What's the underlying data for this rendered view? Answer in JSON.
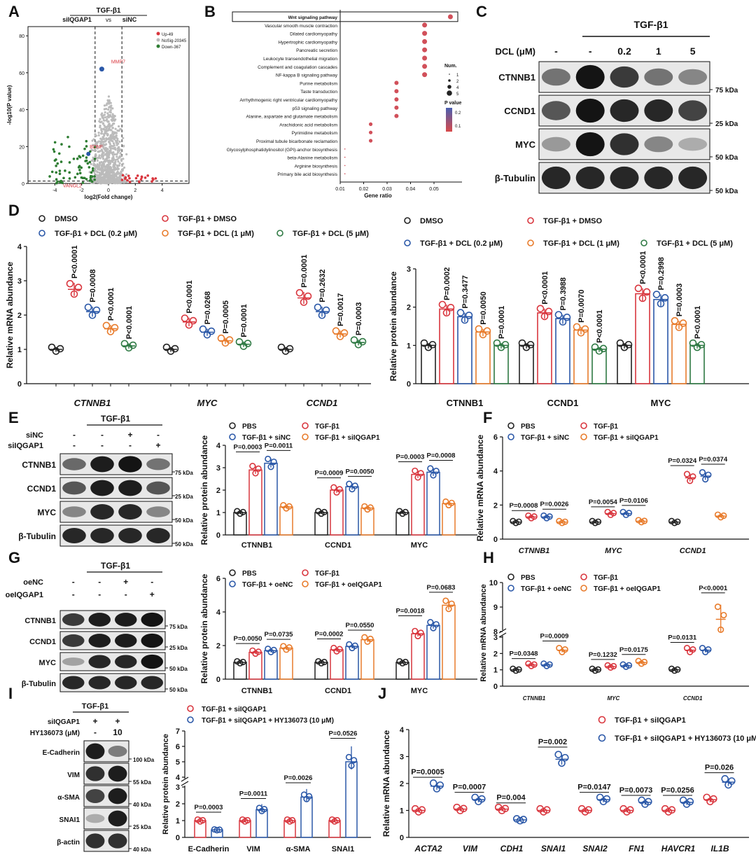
{
  "panels": [
    "A",
    "B",
    "C",
    "D",
    "E",
    "F",
    "G",
    "H",
    "I",
    "J"
  ],
  "colors": {
    "dmso": "#222222",
    "tgf": "#d9363e",
    "low": "#2b58a8",
    "mid": "#e87b2b",
    "high": "#2f7a44",
    "grey": "#bbbbbb",
    "green": "#2e7d32"
  },
  "chart_data": [
    {
      "id": "A",
      "type": "scatter",
      "title": "TGF-β1",
      "subtitle_left": "siIQGAP1",
      "subtitle_vs": "vs",
      "subtitle_right": "siNC",
      "xlabel": "log2(Fold change)",
      "ylabel": "-log10(P value)",
      "x_ticks": [
        "-4",
        "-2",
        "0",
        "2",
        "4"
      ],
      "y_ticks": [
        "0",
        "20",
        "40",
        "60",
        "80"
      ],
      "legend": [
        "Up-49",
        "NoSig-20345",
        "Down-367"
      ],
      "annotations": [
        "MMP7",
        "BDNF",
        "VANGL2"
      ],
      "xlim": [
        -6,
        6
      ],
      "ylim": [
        0,
        85
      ]
    },
    {
      "id": "B",
      "type": "scatter",
      "xlabel": "Gene ratio",
      "x_ticks": [
        "0.01",
        "0.02",
        "0.03",
        "0.04",
        "0.05"
      ],
      "pathways": [
        {
          "name": "Wnt signaling pathway",
          "ratio": 0.057,
          "p": 0.05
        },
        {
          "name": "Vascular smooth muscle contraction",
          "ratio": 0.046,
          "p": 0.08
        },
        {
          "name": "Dilated cardiomyopathy",
          "ratio": 0.046,
          "p": 0.08
        },
        {
          "name": "Hypertrophic cardiomyopathy",
          "ratio": 0.046,
          "p": 0.08
        },
        {
          "name": "Pancreatic secretion",
          "ratio": 0.046,
          "p": 0.08
        },
        {
          "name": "Leukocyte transendothelial migration",
          "ratio": 0.046,
          "p": 0.08
        },
        {
          "name": "Complement and coagulation cascades",
          "ratio": 0.046,
          "p": 0.08
        },
        {
          "name": "NF-kappa B signaling pathway",
          "ratio": 0.046,
          "p": 0.08
        },
        {
          "name": "Purine metabolism",
          "ratio": 0.034,
          "p": 0.1
        },
        {
          "name": "Taste transduction",
          "ratio": 0.034,
          "p": 0.1
        },
        {
          "name": "Arrhythmogenic right ventricular cardiomyopathy",
          "ratio": 0.034,
          "p": 0.1
        },
        {
          "name": "p53 signaling pathway",
          "ratio": 0.034,
          "p": 0.1
        },
        {
          "name": "Alanine, aspartate and glutamate metabolism",
          "ratio": 0.034,
          "p": 0.1
        },
        {
          "name": "Arachidonic acid metabolism",
          "ratio": 0.023,
          "p": 0.12
        },
        {
          "name": "Pyrimidine metabolism",
          "ratio": 0.023,
          "p": 0.12
        },
        {
          "name": "Proximal tubule bicarbonate reclamation",
          "ratio": 0.023,
          "p": 0.12
        },
        {
          "name": "Glycosylphosphatidylinositol (GPI)-anchor biosynthesis",
          "ratio": 0.012,
          "p": 0.15
        },
        {
          "name": "beta-Alanine metabolism",
          "ratio": 0.012,
          "p": 0.15
        },
        {
          "name": "Arginine biosynthesis",
          "ratio": 0.012,
          "p": 0.15
        },
        {
          "name": "Primary bile acid biosynthesis",
          "ratio": 0.012,
          "p": 0.15
        }
      ],
      "legend_size_title": "Num.",
      "legend_sizes": [
        "1",
        "2",
        "4",
        "5"
      ],
      "legend_color_title": "P value",
      "legend_color_ticks": [
        "0.2",
        "0.1"
      ]
    },
    {
      "id": "C",
      "type": "blot",
      "treatment": "TGF-β1",
      "dose_label": "DCL (μM)",
      "lanes": [
        "-",
        "-",
        "0.2",
        "1",
        "5"
      ],
      "bands": [
        {
          "name": "CTNNB1",
          "kda": "75 kDa",
          "intensity": [
            0.45,
            0.95,
            0.75,
            0.45,
            0.35
          ]
        },
        {
          "name": "CCND1",
          "kda": "25 kDa",
          "intensity": [
            0.6,
            0.95,
            0.85,
            0.85,
            0.7
          ]
        },
        {
          "name": "MYC",
          "kda": "50 kDa",
          "intensity": [
            0.25,
            0.95,
            0.8,
            0.35,
            0.15
          ]
        },
        {
          "name": "β-Tubulin",
          "kda": "50 kDa",
          "intensity": [
            0.85,
            0.85,
            0.85,
            0.85,
            0.85
          ]
        }
      ]
    },
    {
      "id": "D1",
      "type": "scatter",
      "ylabel": "Relative mRNA abundance",
      "ylim": [
        0,
        4
      ],
      "y_ticks": [
        "0",
        "1",
        "2",
        "3",
        "4"
      ],
      "legend": [
        "DMSO",
        "TGF-β1 + DMSO",
        "TGF-β1 + DCL (0.2 μM)",
        "TGF-β1 + DCL (1 μM)",
        "TGF-β1 + DCL (5 μM)"
      ],
      "categories": [
        "CTNNB1",
        "MYC",
        "CCND1"
      ],
      "means": [
        [
          1,
          2.75,
          2.1,
          1.6,
          1.1
        ],
        [
          1,
          1.8,
          1.5,
          1.25,
          1.15
        ],
        [
          1,
          2.5,
          2.1,
          1.45,
          1.2
        ]
      ],
      "pvals": [
        [
          "",
          "P<0.0001",
          "P=0.0008",
          "P<0.0001",
          "P<0.0001"
        ],
        [
          "",
          "P<0.0001",
          "P=0.0268",
          "P=0.0005",
          "P=0.0001"
        ],
        [
          "",
          "P=0.0001",
          "P=0.2632",
          "P=0.0017",
          "P=0.0003"
        ]
      ]
    },
    {
      "id": "D2",
      "type": "bar",
      "ylabel": "Relative protein abundance",
      "ylim": [
        0,
        3
      ],
      "y_ticks": [
        "0",
        "1",
        "2",
        "3"
      ],
      "legend": [
        "DMSO",
        "TGF-β1 + DMSO",
        "TGF-β1 + DCL (0.2 μM)",
        "TGF-β1 + DCL (1 μM)",
        "TGF-β1 + DCL (5 μM)"
      ],
      "categories": [
        "CTNNB1",
        "CCND1",
        "MYC"
      ],
      "means": [
        [
          1,
          1.95,
          1.75,
          1.35,
          1.0
        ],
        [
          1,
          1.85,
          1.7,
          1.4,
          0.9
        ],
        [
          1,
          2.35,
          2.2,
          1.55,
          1.0
        ]
      ],
      "pvals": [
        [
          "",
          "P=0.0002",
          "P=0.3477",
          "P=0.0050",
          "P=0.0001"
        ],
        [
          "",
          "P<0.0001",
          "P=0.3988",
          "P=0.0070",
          "P<0.0001"
        ],
        [
          "",
          "P<0.0001",
          "P=0.2998",
          "P=0.0003",
          "P<0.0001"
        ]
      ]
    },
    {
      "id": "E_blot",
      "type": "blot",
      "treatment": "TGF-β1",
      "rows": [
        {
          "label": "siNC",
          "vals": [
            "-",
            "-",
            "+",
            "-"
          ]
        },
        {
          "label": "siIQGAP1",
          "vals": [
            "-",
            "-",
            "-",
            "+"
          ]
        }
      ],
      "bands": [
        {
          "name": "CTNNB1",
          "kda": "75 kDa",
          "intensity": [
            0.5,
            0.9,
            0.95,
            0.45
          ]
        },
        {
          "name": "CCND1",
          "kda": "25 kDa",
          "intensity": [
            0.6,
            0.9,
            0.9,
            0.6
          ]
        },
        {
          "name": "MYC",
          "kda": "50 kDa",
          "intensity": [
            0.35,
            0.85,
            0.85,
            0.35
          ]
        },
        {
          "name": "β-Tubulin",
          "kda": "50 kDa",
          "intensity": [
            0.85,
            0.85,
            0.85,
            0.85
          ]
        }
      ]
    },
    {
      "id": "E_bar",
      "type": "bar",
      "ylabel": "Relative protein abundance",
      "ylim": [
        0,
        4
      ],
      "y_ticks": [
        "0",
        "1",
        "2",
        "3",
        "4"
      ],
      "legend": [
        "PBS",
        "TGF-β1",
        "TGF-β1 + siNC",
        "TGF-β1 + siIQGAP1"
      ],
      "categories": [
        "CTNNB1",
        "CCND1",
        "MYC"
      ],
      "means": [
        [
          1,
          2.9,
          3.2,
          1.25
        ],
        [
          1,
          2.0,
          2.15,
          1.2
        ],
        [
          1,
          2.7,
          2.8,
          1.4
        ]
      ],
      "brackets": [
        [
          "P=0.0003",
          "P=0.0011"
        ],
        [
          "P=0.0009",
          "P=0.0050"
        ],
        [
          "P=0.0003",
          "P=0.0008"
        ]
      ]
    },
    {
      "id": "F",
      "type": "scatter",
      "ylabel": "Relative mRNA abundance",
      "ylim": [
        0,
        6
      ],
      "y_ticks": [
        "0",
        "2",
        "4",
        "6"
      ],
      "legend": [
        "PBS",
        "TGF-β1",
        "TGF-β1 + siNC",
        "TGF-β1 + siIQGAP1"
      ],
      "categories": [
        "CTNNB1",
        "MYC",
        "CCND1"
      ],
      "means": [
        [
          1,
          1.3,
          1.3,
          1.0
        ],
        [
          1,
          1.5,
          1.5,
          1.05
        ],
        [
          1,
          3.6,
          3.7,
          1.35
        ]
      ],
      "brackets": [
        [
          "P=0.0008",
          "P=0.0026"
        ],
        [
          "P=0.0054",
          "P=0.0106"
        ],
        [
          "P=0.0324",
          "P=0.0374"
        ]
      ]
    },
    {
      "id": "G_blot",
      "type": "blot",
      "treatment": "TGF-β1",
      "rows": [
        {
          "label": "oeNC",
          "vals": [
            "-",
            "-",
            "+",
            "-"
          ]
        },
        {
          "label": "oeIQGAP1",
          "vals": [
            "-",
            "-",
            "-",
            "+"
          ]
        }
      ],
      "bands": [
        {
          "name": "CTNNB1",
          "kda": "75 kDa",
          "intensity": [
            0.75,
            0.9,
            0.9,
            0.95
          ]
        },
        {
          "name": "CCND1",
          "kda": "25 kDa",
          "intensity": [
            0.75,
            0.9,
            0.9,
            0.95
          ]
        },
        {
          "name": "MYC",
          "kda": "50 kDa",
          "intensity": [
            0.2,
            0.85,
            0.85,
            0.95
          ]
        },
        {
          "name": "β-Tubulin",
          "kda": "50 kDa",
          "intensity": [
            0.85,
            0.85,
            0.85,
            0.85
          ]
        }
      ]
    },
    {
      "id": "G_bar",
      "type": "bar",
      "ylabel": "Relative protein abundance",
      "ylim": [
        0,
        6
      ],
      "y_ticks": [
        "0",
        "2",
        "4",
        "6"
      ],
      "legend": [
        "PBS",
        "TGF-β1",
        "TGF-β1 + oeNC",
        "TGF-β1 + oeIQGAP1"
      ],
      "categories": [
        "CTNNB1",
        "CCND1",
        "MYC"
      ],
      "means": [
        [
          1,
          1.6,
          1.7,
          1.85
        ],
        [
          1,
          1.75,
          1.95,
          2.35
        ],
        [
          1,
          2.7,
          3.2,
          4.4
        ]
      ],
      "brackets": [
        [
          "P=0.0050",
          "P=0.0735"
        ],
        [
          "P=0.0002",
          "P=0.0550"
        ],
        [
          "P=0.0018",
          "P=0.0683"
        ]
      ]
    },
    {
      "id": "H",
      "type": "scatter",
      "ylabel": "Relative mRNA abundance",
      "y_ticks": [
        "0",
        "1",
        "2",
        "3",
        "8",
        "9",
        "10"
      ],
      "legend": [
        "PBS",
        "TGF-β1",
        "TGF-β1 + oeNC",
        "TGF-β1 + oeIQGAP1"
      ],
      "categories": [
        "CTNNB1",
        "MYC",
        "CCND1"
      ],
      "means": [
        [
          1,
          1.3,
          1.3,
          2.2
        ],
        [
          1,
          1.2,
          1.25,
          1.45
        ],
        [
          1,
          2.2,
          2.2,
          8.5
        ]
      ],
      "brackets": [
        [
          "P=0.0348",
          "P=0.0009"
        ],
        [
          "P=0.1232",
          "P=0.0175"
        ],
        [
          "P=0.0131",
          "P<0.0001"
        ]
      ]
    },
    {
      "id": "I_blot",
      "type": "blot",
      "treatment": "TGF-β1",
      "rows": [
        {
          "label": "siIQGAP1",
          "vals": [
            "+",
            "+"
          ]
        },
        {
          "label": "HY136073 (μM)",
          "vals": [
            "-",
            "10"
          ]
        }
      ],
      "bands": [
        {
          "name": "E-Cadherin",
          "kda": "100 kDa",
          "intensity": [
            0.9,
            0.4
          ]
        },
        {
          "name": "VIM",
          "kda": "55 kDa",
          "intensity": [
            0.8,
            0.9
          ]
        },
        {
          "name": "α-SMA",
          "kda": "40 kDa",
          "intensity": [
            0.7,
            0.9
          ]
        },
        {
          "name": "SNAI1",
          "kda": "25 kDa",
          "intensity": [
            0.15,
            0.9
          ]
        },
        {
          "name": "β-actin",
          "kda": "40 kDa",
          "intensity": [
            0.8,
            0.8
          ]
        }
      ]
    },
    {
      "id": "I_bar",
      "type": "bar",
      "ylabel": "Relative protein abundance",
      "y_ticks": [
        "0",
        "1",
        "2",
        "3",
        "4",
        "5",
        "6",
        "7"
      ],
      "legend": [
        "TGF-β1 + siIQGAP1",
        "TGF-β1 + siIQGAP1 + HY136073 (10 μM)"
      ],
      "categories": [
        "E-Cadherin",
        "VIM",
        "α-SMA",
        "SNAI1"
      ],
      "means": [
        [
          1.0,
          0.45
        ],
        [
          1.0,
          1.65
        ],
        [
          1.0,
          2.4
        ],
        [
          1.0,
          5.0
        ]
      ],
      "pvals": [
        "P=0.0003",
        "P=0.0011",
        "P=0.0026",
        "P=0.0526"
      ]
    },
    {
      "id": "J",
      "type": "scatter",
      "ylabel": "Relative mRNA abundance",
      "ylim": [
        0,
        4
      ],
      "y_ticks": [
        "0",
        "1",
        "2",
        "3",
        "4"
      ],
      "legend": [
        "TGF-β1 + siIQGAP1",
        "TGF-β1 + siIQGAP1 + HY136073 (10 μM)"
      ],
      "categories": [
        "ACTA2",
        "VIM",
        "CDH1",
        "SNAI1",
        "SNAI2",
        "FN1",
        "HAVCR1",
        "IL1B"
      ],
      "means": [
        [
          1.0,
          1.9
        ],
        [
          1.05,
          1.4
        ],
        [
          1.05,
          0.65
        ],
        [
          1.0,
          2.9
        ],
        [
          1.0,
          1.4
        ],
        [
          1.0,
          1.3
        ],
        [
          1.0,
          1.3
        ],
        [
          1.4,
          2.05
        ]
      ],
      "pvals": [
        "P=0.0005",
        "P=0.0007",
        "P=0.004",
        "P=0.002",
        "P=0.0147",
        "P=0.0073",
        "P=0.0256",
        "P=0.026"
      ]
    }
  ]
}
